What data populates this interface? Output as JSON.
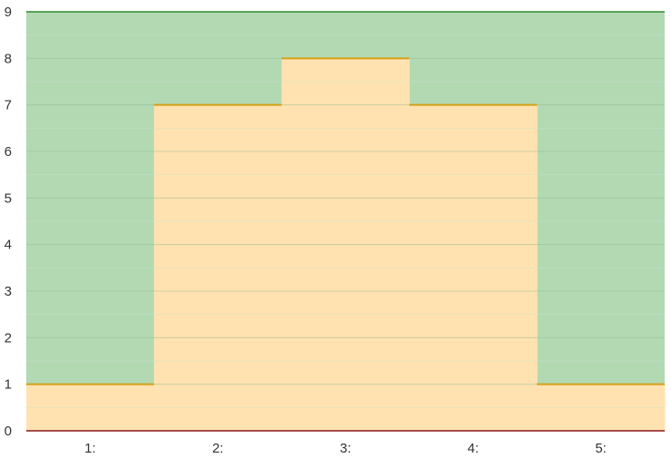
{
  "chart_data": {
    "type": "area",
    "step": true,
    "categories": [
      "1:",
      "2:",
      "3:",
      "4:",
      "5:"
    ],
    "values": [
      1,
      7,
      8,
      7,
      1
    ],
    "ylim": [
      0,
      9
    ],
    "yticks": [
      0,
      1,
      2,
      3,
      4,
      5,
      6,
      7,
      8,
      9
    ],
    "grid": true,
    "colors": {
      "upper_fill": "#b3d9b3",
      "lower_fill": "#ffe2b0",
      "step_line": "#d4a017",
      "top_line": "#2e8b2e",
      "baseline": "#8b1a1a",
      "major_grid": "#8fb88f",
      "minor_grid": "#c9e0c9",
      "label": "#333333"
    }
  }
}
